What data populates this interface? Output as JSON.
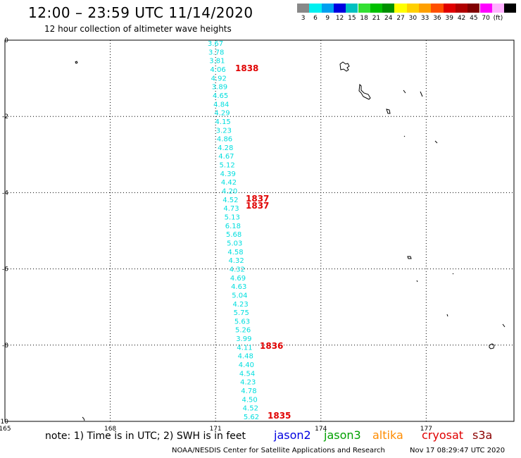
{
  "header": {
    "title": "12:00 – 23:59 UTC 11/14/2020",
    "subtitle": "12 hour collection of altimeter wave heights"
  },
  "legend": {
    "colors": [
      "#888888",
      "#00f0f0",
      "#00a0f0",
      "#0000e0",
      "#00c0c0",
      "#33e033",
      "#00c000",
      "#009000",
      "#ffff00",
      "#ffd000",
      "#ffa000",
      "#ff5000",
      "#e00000",
      "#b00000",
      "#800000",
      "#ff00ff",
      "#ffb0ff",
      "#000000"
    ],
    "labels": [
      "3",
      "6",
      "9",
      "12",
      "15",
      "18",
      "21",
      "24",
      "27",
      "30",
      "33",
      "36",
      "39",
      "42",
      "45",
      "70",
      "(ft)"
    ]
  },
  "map": {
    "x_ticks": [
      "165",
      "168",
      "171",
      "174",
      "177"
    ],
    "y_ticks": [
      "0",
      "-2",
      "-4",
      "-6",
      "-8",
      "-10"
    ],
    "x_range": [
      165,
      179.5
    ],
    "y_range": [
      0,
      -10
    ]
  },
  "track": {
    "color": "#00dede",
    "swh_ft": [
      "3.67",
      "3.78",
      "3.81",
      "4.06",
      "4.92",
      "3.89",
      "4.65",
      "4.84",
      "4.29",
      "4.15",
      "3.23",
      "4.86",
      "4.28",
      "4.67",
      "5.12",
      "4.39",
      "4.42",
      "4.20",
      "4.52",
      "4.73",
      "5.13",
      "6.18",
      "5.68",
      "5.03",
      "4.58",
      "4.32",
      "4.32",
      "4.69",
      "4.63",
      "5.04",
      "4.23",
      "5.75",
      "5.63",
      "5.26",
      "3.99",
      "4.11",
      "4.48",
      "4.40",
      "4.54",
      "4.23",
      "4.78",
      "4.50",
      "4.52",
      "5.62"
    ]
  },
  "time_labels": {
    "color": "#e00000",
    "items": [
      {
        "text": "1838"
      },
      {
        "text": "1837"
      },
      {
        "text": "1837"
      },
      {
        "text": "1836"
      },
      {
        "text": "1835"
      }
    ]
  },
  "footer": {
    "note": "note: 1) Time is in UTC; 2) SWH is in feet",
    "satellites": [
      {
        "name": "jason2",
        "color": "#0000e0"
      },
      {
        "name": "jason3",
        "color": "#00a000"
      },
      {
        "name": "altika",
        "color": "#ff8c00"
      },
      {
        "name": "cryosat",
        "color": "#e00000"
      },
      {
        "name": "s3a",
        "color": "#8b0000"
      }
    ],
    "credit": "NOAA/NESDIS Center for Satellite Applications and Research",
    "timestamp": "Nov 17 08:29:47 UTC 2020"
  }
}
